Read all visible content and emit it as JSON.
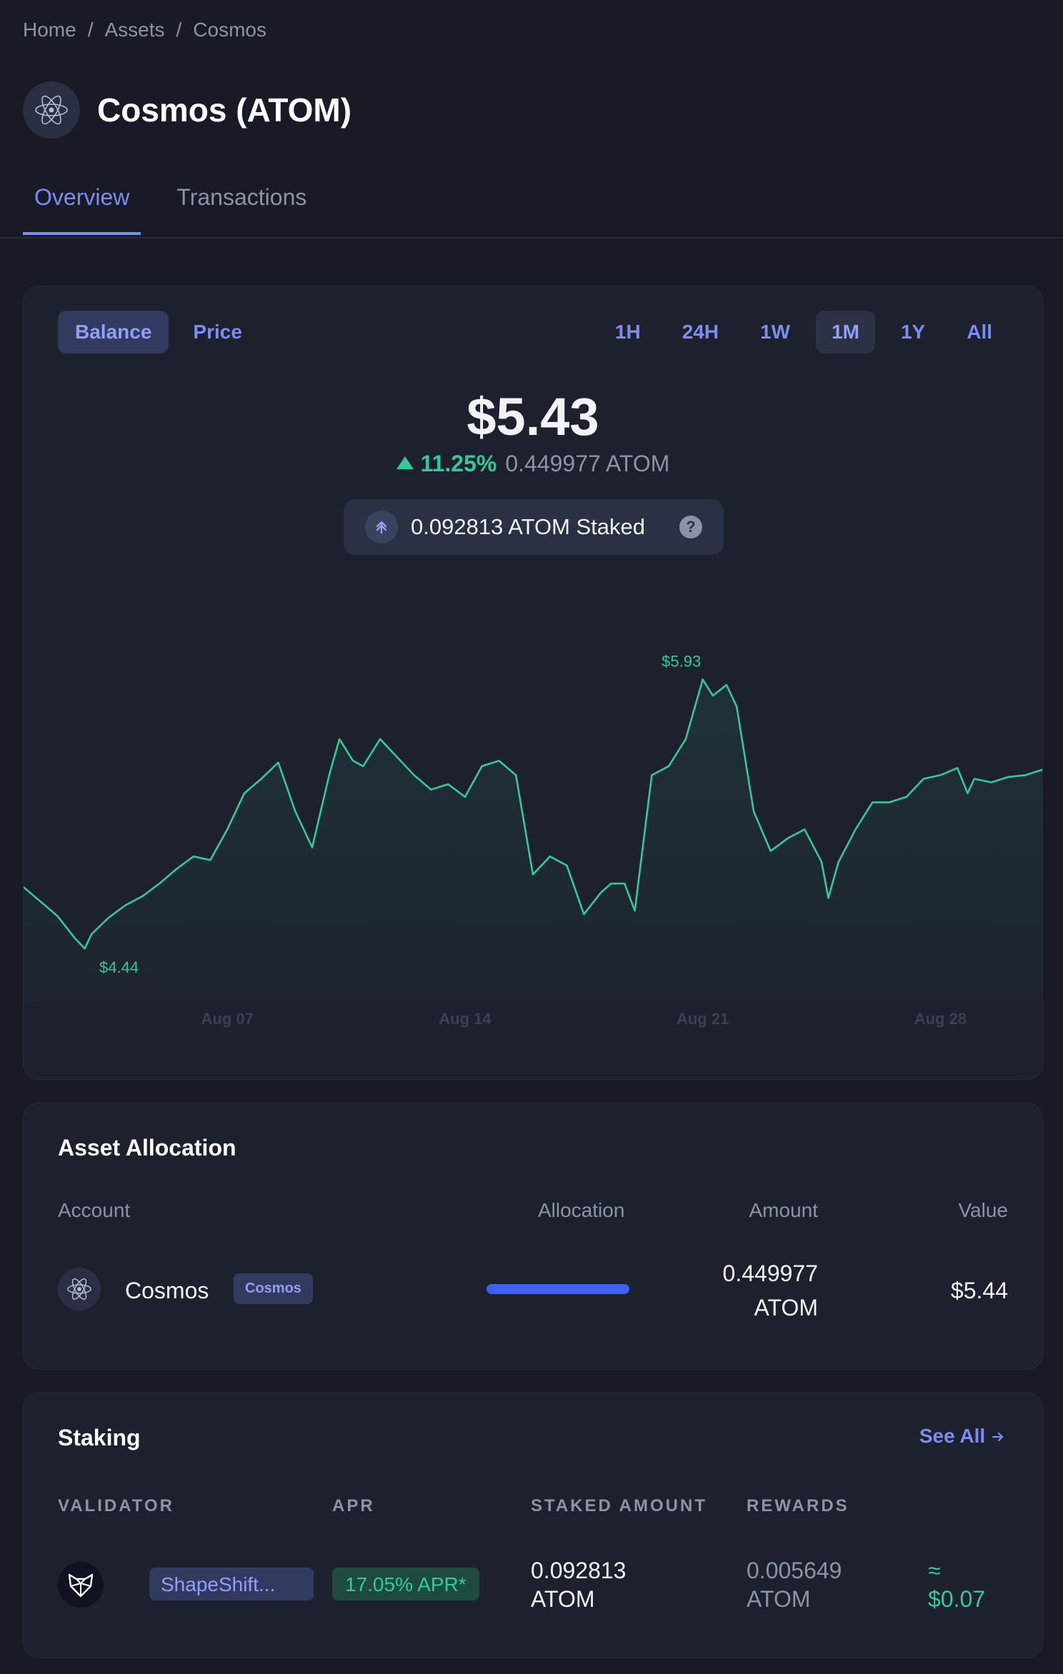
{
  "breadcrumb": {
    "home": "Home",
    "assets": "Assets",
    "current": "Cosmos",
    "sep": "/"
  },
  "asset": {
    "title": "Cosmos (ATOM)",
    "logo_icon": "cosmos-atom-icon"
  },
  "tabs": [
    {
      "label": "Overview",
      "active": true
    },
    {
      "label": "Transactions",
      "active": false
    }
  ],
  "chart_card": {
    "modes": [
      {
        "label": "Balance",
        "active": true
      },
      {
        "label": "Price",
        "active": false
      }
    ],
    "ranges": [
      {
        "label": "1H",
        "active": false
      },
      {
        "label": "24H",
        "active": false
      },
      {
        "label": "1W",
        "active": false
      },
      {
        "label": "1M",
        "active": true
      },
      {
        "label": "1Y",
        "active": false
      },
      {
        "label": "All",
        "active": false
      }
    ],
    "value": "$5.43",
    "change_pct": "11.25%",
    "change_amount": "0.449977 ATOM",
    "staked_text": "0.092813 ATOM Staked",
    "help_glyph": "?"
  },
  "chart_data": {
    "type": "area",
    "title": "",
    "xlabel": "",
    "ylabel": "",
    "x_ticks": [
      "Aug 07",
      "Aug 14",
      "Aug 21",
      "Aug 28"
    ],
    "x_tick_days": [
      7,
      14,
      21,
      28
    ],
    "xlim": [
      1,
      31
    ],
    "ylim": [
      4.35,
      6.05
    ],
    "color": "#34c89a",
    "grid": false,
    "legend": "none",
    "annotations": [
      {
        "label": "$5.93",
        "kind": "max"
      },
      {
        "label": "$4.44",
        "kind": "min"
      }
    ],
    "series": [
      {
        "x": [
          1,
          1.5,
          2,
          2.5,
          2.8,
          3,
          3.5,
          4,
          4.5,
          5,
          5.5,
          6,
          6.5,
          7,
          7.5,
          8,
          8.5,
          9,
          9.5,
          10,
          10.3,
          10.7,
          11,
          11.5,
          12,
          12.5,
          13,
          13.5,
          14,
          14.5,
          15,
          15.5,
          16,
          16.5,
          17,
          17.5,
          18,
          18.3,
          18.7,
          19,
          19.5,
          20,
          20.5,
          21,
          21.3,
          21.7,
          22,
          22.5,
          23,
          23.5,
          24,
          24.5,
          24.7,
          25,
          25.5,
          26,
          26.5,
          27,
          27.5,
          28,
          28.5,
          28.8,
          29,
          29.5,
          30,
          30.5,
          31
        ],
        "y": [
          4.78,
          4.7,
          4.62,
          4.5,
          4.44,
          4.52,
          4.61,
          4.68,
          4.73,
          4.8,
          4.88,
          4.95,
          4.93,
          5.1,
          5.3,
          5.38,
          5.47,
          5.2,
          5.0,
          5.4,
          5.6,
          5.48,
          5.45,
          5.6,
          5.5,
          5.4,
          5.32,
          5.35,
          5.28,
          5.45,
          5.48,
          5.4,
          4.85,
          4.95,
          4.9,
          4.63,
          4.75,
          4.8,
          4.8,
          4.65,
          5.4,
          5.45,
          5.6,
          5.93,
          5.84,
          5.9,
          5.78,
          5.2,
          4.98,
          5.05,
          5.1,
          4.92,
          4.72,
          4.92,
          5.1,
          5.25,
          5.25,
          5.28,
          5.38,
          5.4,
          5.44,
          5.3,
          5.38,
          5.36,
          5.39,
          5.4,
          5.43
        ]
      }
    ]
  },
  "allocation": {
    "title": "Asset Allocation",
    "headers": {
      "account": "Account",
      "allocation": "Allocation",
      "amount": "Amount",
      "value": "Value"
    },
    "rows": [
      {
        "name": "Cosmos",
        "badge": "Cosmos",
        "allocation_fraction": 1.0,
        "amount_line1": "0.449977",
        "amount_line2": "ATOM",
        "value": "$5.44"
      }
    ]
  },
  "staking": {
    "title": "Staking",
    "see_all": "See All",
    "headers": {
      "validator": "VALIDATOR",
      "apr": "APR",
      "staked": "STAKED AMOUNT",
      "rewards": "REWARDS"
    },
    "rows": [
      {
        "validator": "ShapeShift...",
        "apr": "17.05% APR*",
        "staked_line1": "0.092813",
        "staked_line2": "ATOM",
        "rewards_line1": "0.005649",
        "rewards_line2": "ATOM",
        "rewards_usd_line1": "≈",
        "rewards_usd_line2": "$0.07"
      }
    ]
  }
}
